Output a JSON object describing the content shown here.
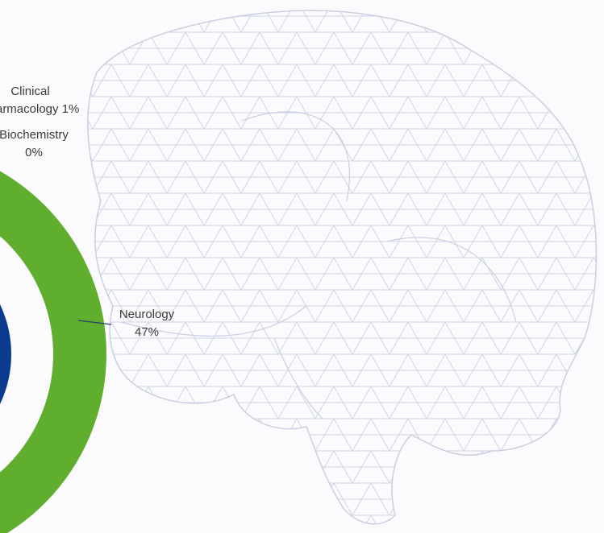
{
  "chart_data": {
    "type": "donut",
    "categories": [
      "Clinical Pharmacology",
      "Biochemistry",
      "Neurology"
    ],
    "values": [
      1,
      0,
      47
    ],
    "value_labels": [
      "1%",
      "0%",
      "47%"
    ],
    "colors": [
      "#9aa3ad",
      "#c8ced4",
      "#5fae2e"
    ]
  }
}
